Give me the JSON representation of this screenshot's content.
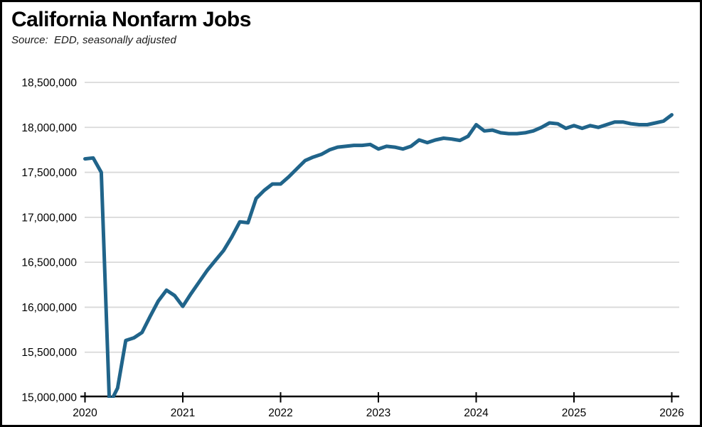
{
  "header": {
    "title": "California Nonfarm Jobs",
    "source": "Source:  EDD, seasonally adjusted"
  },
  "chart_data": {
    "type": "line",
    "title": "California Nonfarm Jobs",
    "source_note": "Source:  EDD, seasonally adjusted",
    "legend": "none",
    "grid": "horizontal-only",
    "grid_color": "#d9d9d9",
    "axis_color": "#000000",
    "ylim": [
      15000000,
      18500000
    ],
    "yticks": [
      {
        "value": 15000000,
        "label": "15,000,000"
      },
      {
        "value": 15500000,
        "label": "15,500,000"
      },
      {
        "value": 16000000,
        "label": "16,000,000"
      },
      {
        "value": 16500000,
        "label": "16,500,000"
      },
      {
        "value": 17000000,
        "label": "17,000,000"
      },
      {
        "value": 17500000,
        "label": "17,500,000"
      },
      {
        "value": 18000000,
        "label": "18,000,000"
      },
      {
        "value": 18500000,
        "label": "18,500,000"
      }
    ],
    "xlim_years": [
      2020,
      2026
    ],
    "xticks": [
      {
        "value": 2020,
        "label": "2020"
      },
      {
        "value": 2021,
        "label": "2021"
      },
      {
        "value": 2022,
        "label": "2022"
      },
      {
        "value": 2023,
        "label": "2023"
      },
      {
        "value": 2024,
        "label": "2024"
      },
      {
        "value": 2025,
        "label": "2025"
      },
      {
        "value": 2026,
        "label": "2026"
      }
    ],
    "x_start": "2020-01",
    "x_end": "2026-01",
    "x_unit": "month",
    "series": [
      {
        "name": "California nonfarm jobs, seasonally adjusted",
        "color": "#20648A",
        "line_width": 5,
        "months": [
          "2020-01",
          "2020-02",
          "2020-03",
          "2020-04",
          "2020-05",
          "2020-06",
          "2020-07",
          "2020-08",
          "2020-09",
          "2020-10",
          "2020-11",
          "2020-12",
          "2021-01",
          "2021-02",
          "2021-03",
          "2021-04",
          "2021-05",
          "2021-06",
          "2021-07",
          "2021-08",
          "2021-09",
          "2021-10",
          "2021-11",
          "2021-12",
          "2022-01",
          "2022-02",
          "2022-03",
          "2022-04",
          "2022-05",
          "2022-06",
          "2022-07",
          "2022-08",
          "2022-09",
          "2022-10",
          "2022-11",
          "2022-12",
          "2023-01",
          "2023-02",
          "2023-03",
          "2023-04",
          "2023-05",
          "2023-06",
          "2023-07",
          "2023-08",
          "2023-09",
          "2023-10",
          "2023-11",
          "2023-12",
          "2024-01",
          "2024-02",
          "2024-03",
          "2024-04",
          "2024-05",
          "2024-06",
          "2024-07",
          "2024-08",
          "2024-09",
          "2024-10",
          "2024-11",
          "2024-12",
          "2025-01",
          "2025-02",
          "2025-03",
          "2025-04",
          "2025-05",
          "2025-06",
          "2025-07",
          "2025-08",
          "2025-09",
          "2025-10",
          "2025-11",
          "2025-12",
          "2026-01"
        ],
        "values": [
          17650000,
          17660000,
          17500000,
          14920000,
          15100000,
          15630000,
          15660000,
          15720000,
          15900000,
          16070000,
          16190000,
          16130000,
          16010000,
          16150000,
          16280000,
          16410000,
          16520000,
          16630000,
          16780000,
          16950000,
          16940000,
          17210000,
          17300000,
          17370000,
          17370000,
          17450000,
          17540000,
          17630000,
          17670000,
          17700000,
          17750000,
          17780000,
          17790000,
          17800000,
          17800000,
          17810000,
          17760000,
          17790000,
          17780000,
          17760000,
          17790000,
          17860000,
          17830000,
          17860000,
          17880000,
          17870000,
          17855000,
          17900000,
          18030000,
          17960000,
          17970000,
          17940000,
          17930000,
          17930000,
          17940000,
          17960000,
          18000000,
          18050000,
          18040000,
          17990000,
          18020000,
          17990000,
          18020000,
          18000000,
          18030000,
          18060000,
          18060000,
          18040000,
          18030000,
          18030000,
          18050000,
          18070000,
          18140000
        ]
      }
    ]
  }
}
